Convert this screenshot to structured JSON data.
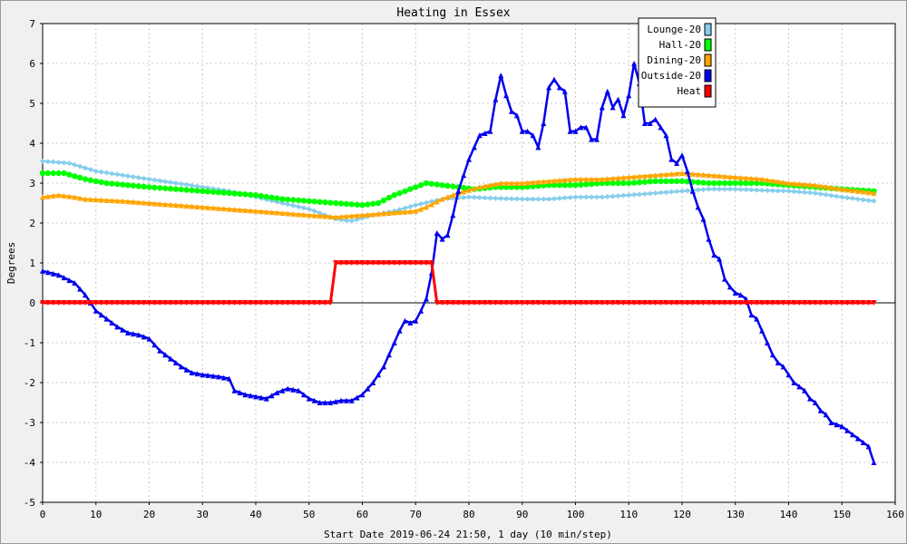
{
  "chart_data": {
    "type": "line",
    "title": "Heating in Essex",
    "xlabel": "Start Date 2019-06-24 21:50, 1 day (10 min/step)",
    "ylabel": "Degrees",
    "xlim": [
      0,
      160
    ],
    "ylim": [
      -5,
      7
    ],
    "xticks": [
      0,
      10,
      20,
      30,
      40,
      50,
      60,
      70,
      80,
      90,
      100,
      110,
      120,
      130,
      140,
      150,
      160
    ],
    "yticks": [
      -5,
      -4,
      -3,
      -2,
      -1,
      0,
      1,
      2,
      3,
      4,
      5,
      6,
      7
    ],
    "grid": true,
    "legend_position": "top-right",
    "series": [
      {
        "name": "Lounge-20",
        "color": "#87ceeb",
        "marker": "diamond",
        "points": [
          [
            0,
            3.55
          ],
          [
            5,
            3.5
          ],
          [
            10,
            3.3
          ],
          [
            15,
            3.2
          ],
          [
            20,
            3.1
          ],
          [
            25,
            3.0
          ],
          [
            30,
            2.9
          ],
          [
            35,
            2.8
          ],
          [
            40,
            2.65
          ],
          [
            45,
            2.5
          ],
          [
            50,
            2.35
          ],
          [
            55,
            2.1
          ],
          [
            58,
            2.05
          ],
          [
            62,
            2.2
          ],
          [
            66,
            2.3
          ],
          [
            70,
            2.45
          ],
          [
            75,
            2.6
          ],
          [
            80,
            2.65
          ],
          [
            85,
            2.62
          ],
          [
            90,
            2.6
          ],
          [
            95,
            2.6
          ],
          [
            100,
            2.65
          ],
          [
            105,
            2.65
          ],
          [
            110,
            2.7
          ],
          [
            115,
            2.75
          ],
          [
            120,
            2.8
          ],
          [
            125,
            2.85
          ],
          [
            130,
            2.85
          ],
          [
            135,
            2.82
          ],
          [
            140,
            2.8
          ],
          [
            145,
            2.75
          ],
          [
            150,
            2.65
          ],
          [
            156,
            2.55
          ]
        ]
      },
      {
        "name": "Hall-20",
        "color": "#00ff00",
        "marker": "circle",
        "points": [
          [
            0,
            3.25
          ],
          [
            4,
            3.25
          ],
          [
            8,
            3.1
          ],
          [
            12,
            3.0
          ],
          [
            16,
            2.95
          ],
          [
            20,
            2.9
          ],
          [
            25,
            2.85
          ],
          [
            30,
            2.8
          ],
          [
            35,
            2.75
          ],
          [
            40,
            2.7
          ],
          [
            45,
            2.6
          ],
          [
            50,
            2.55
          ],
          [
            55,
            2.5
          ],
          [
            60,
            2.45
          ],
          [
            63,
            2.5
          ],
          [
            66,
            2.7
          ],
          [
            69,
            2.85
          ],
          [
            72,
            3.0
          ],
          [
            75,
            2.95
          ],
          [
            78,
            2.9
          ],
          [
            81,
            2.85
          ],
          [
            85,
            2.9
          ],
          [
            90,
            2.9
          ],
          [
            95,
            2.95
          ],
          [
            100,
            2.95
          ],
          [
            105,
            3.0
          ],
          [
            110,
            3.0
          ],
          [
            115,
            3.05
          ],
          [
            120,
            3.05
          ],
          [
            125,
            3.0
          ],
          [
            130,
            3.0
          ],
          [
            135,
            3.0
          ],
          [
            140,
            2.95
          ],
          [
            145,
            2.9
          ],
          [
            150,
            2.85
          ],
          [
            156,
            2.8
          ]
        ]
      },
      {
        "name": "Dining-20",
        "color": "#ffa500",
        "marker": "triangle-up",
        "points": [
          [
            0,
            2.65
          ],
          [
            3,
            2.7
          ],
          [
            6,
            2.65
          ],
          [
            8,
            2.6
          ],
          [
            15,
            2.55
          ],
          [
            20,
            2.5
          ],
          [
            25,
            2.45
          ],
          [
            30,
            2.4
          ],
          [
            35,
            2.35
          ],
          [
            40,
            2.3
          ],
          [
            45,
            2.25
          ],
          [
            50,
            2.2
          ],
          [
            55,
            2.15
          ],
          [
            60,
            2.2
          ],
          [
            65,
            2.25
          ],
          [
            70,
            2.3
          ],
          [
            72,
            2.4
          ],
          [
            75,
            2.6
          ],
          [
            78,
            2.75
          ],
          [
            82,
            2.9
          ],
          [
            86,
            3.0
          ],
          [
            90,
            3.0
          ],
          [
            95,
            3.05
          ],
          [
            100,
            3.1
          ],
          [
            105,
            3.1
          ],
          [
            110,
            3.15
          ],
          [
            115,
            3.2
          ],
          [
            120,
            3.25
          ],
          [
            125,
            3.2
          ],
          [
            130,
            3.15
          ],
          [
            135,
            3.1
          ],
          [
            140,
            3.0
          ],
          [
            145,
            2.95
          ],
          [
            150,
            2.85
          ],
          [
            156,
            2.75
          ]
        ]
      },
      {
        "name": "Outside-20",
        "color": "#0000ee",
        "marker": "triangle-up",
        "points": [
          [
            0,
            0.8
          ],
          [
            3,
            0.7
          ],
          [
            6,
            0.5
          ],
          [
            8,
            0.2
          ],
          [
            10,
            -0.2
          ],
          [
            12,
            -0.4
          ],
          [
            14,
            -0.6
          ],
          [
            16,
            -0.75
          ],
          [
            18,
            -0.8
          ],
          [
            20,
            -0.9
          ],
          [
            22,
            -1.2
          ],
          [
            24,
            -1.4
          ],
          [
            26,
            -1.6
          ],
          [
            28,
            -1.75
          ],
          [
            30,
            -1.8
          ],
          [
            33,
            -1.85
          ],
          [
            35,
            -1.9
          ],
          [
            36,
            -2.2
          ],
          [
            38,
            -2.3
          ],
          [
            40,
            -2.35
          ],
          [
            42,
            -2.4
          ],
          [
            44,
            -2.25
          ],
          [
            46,
            -2.15
          ],
          [
            48,
            -2.2
          ],
          [
            50,
            -2.4
          ],
          [
            52,
            -2.5
          ],
          [
            54,
            -2.5
          ],
          [
            56,
            -2.45
          ],
          [
            58,
            -2.45
          ],
          [
            60,
            -2.3
          ],
          [
            62,
            -2.0
          ],
          [
            64,
            -1.6
          ],
          [
            66,
            -1.0
          ],
          [
            67,
            -0.7
          ],
          [
            68,
            -0.45
          ],
          [
            69,
            -0.5
          ],
          [
            70,
            -0.45
          ],
          [
            71,
            -0.2
          ],
          [
            72,
            0.1
          ],
          [
            73,
            0.75
          ],
          [
            74,
            1.75
          ],
          [
            75,
            1.6
          ],
          [
            76,
            1.7
          ],
          [
            77,
            2.2
          ],
          [
            78,
            2.8
          ],
          [
            80,
            3.6
          ],
          [
            82,
            4.2
          ],
          [
            84,
            4.3
          ],
          [
            85,
            5.1
          ],
          [
            86,
            5.7
          ],
          [
            87,
            5.2
          ],
          [
            88,
            4.8
          ],
          [
            89,
            4.7
          ],
          [
            90,
            4.3
          ],
          [
            91,
            4.3
          ],
          [
            92,
            4.2
          ],
          [
            93,
            3.9
          ],
          [
            94,
            4.5
          ],
          [
            95,
            5.4
          ],
          [
            96,
            5.6
          ],
          [
            97,
            5.4
          ],
          [
            98,
            5.3
          ],
          [
            99,
            4.3
          ],
          [
            100,
            4.3
          ],
          [
            101,
            4.4
          ],
          [
            102,
            4.4
          ],
          [
            103,
            4.1
          ],
          [
            104,
            4.1
          ],
          [
            105,
            4.9
          ],
          [
            106,
            5.3
          ],
          [
            107,
            4.9
          ],
          [
            108,
            5.1
          ],
          [
            109,
            4.7
          ],
          [
            110,
            5.2
          ],
          [
            111,
            6.0
          ],
          [
            112,
            5.5
          ],
          [
            113,
            4.5
          ],
          [
            114,
            4.5
          ],
          [
            115,
            4.6
          ],
          [
            116,
            4.4
          ],
          [
            117,
            4.2
          ],
          [
            118,
            3.6
          ],
          [
            119,
            3.5
          ],
          [
            120,
            3.7
          ],
          [
            121,
            3.3
          ],
          [
            122,
            2.8
          ],
          [
            123,
            2.4
          ],
          [
            124,
            2.1
          ],
          [
            125,
            1.6
          ],
          [
            126,
            1.2
          ],
          [
            127,
            1.1
          ],
          [
            128,
            0.6
          ],
          [
            129,
            0.4
          ],
          [
            130,
            0.25
          ],
          [
            131,
            0.2
          ],
          [
            132,
            0.1
          ],
          [
            133,
            -0.3
          ],
          [
            134,
            -0.4
          ],
          [
            135,
            -0.7
          ],
          [
            136,
            -1.0
          ],
          [
            137,
            -1.3
          ],
          [
            138,
            -1.5
          ],
          [
            139,
            -1.6
          ],
          [
            140,
            -1.8
          ],
          [
            141,
            -2.0
          ],
          [
            142,
            -2.1
          ],
          [
            143,
            -2.2
          ],
          [
            144,
            -2.4
          ],
          [
            145,
            -2.5
          ],
          [
            146,
            -2.7
          ],
          [
            147,
            -2.8
          ],
          [
            148,
            -3.0
          ],
          [
            149,
            -3.05
          ],
          [
            150,
            -3.1
          ],
          [
            151,
            -3.2
          ],
          [
            152,
            -3.3
          ],
          [
            153,
            -3.4
          ],
          [
            154,
            -3.5
          ],
          [
            155,
            -3.6
          ],
          [
            156,
            -4.0
          ]
        ]
      },
      {
        "name": "Heat",
        "color": "#ff0000",
        "marker": "triangle-down",
        "points": [
          [
            0,
            0
          ],
          [
            54,
            0
          ],
          [
            55,
            1
          ],
          [
            73,
            1
          ],
          [
            74,
            0
          ],
          [
            156,
            0
          ]
        ]
      }
    ]
  }
}
